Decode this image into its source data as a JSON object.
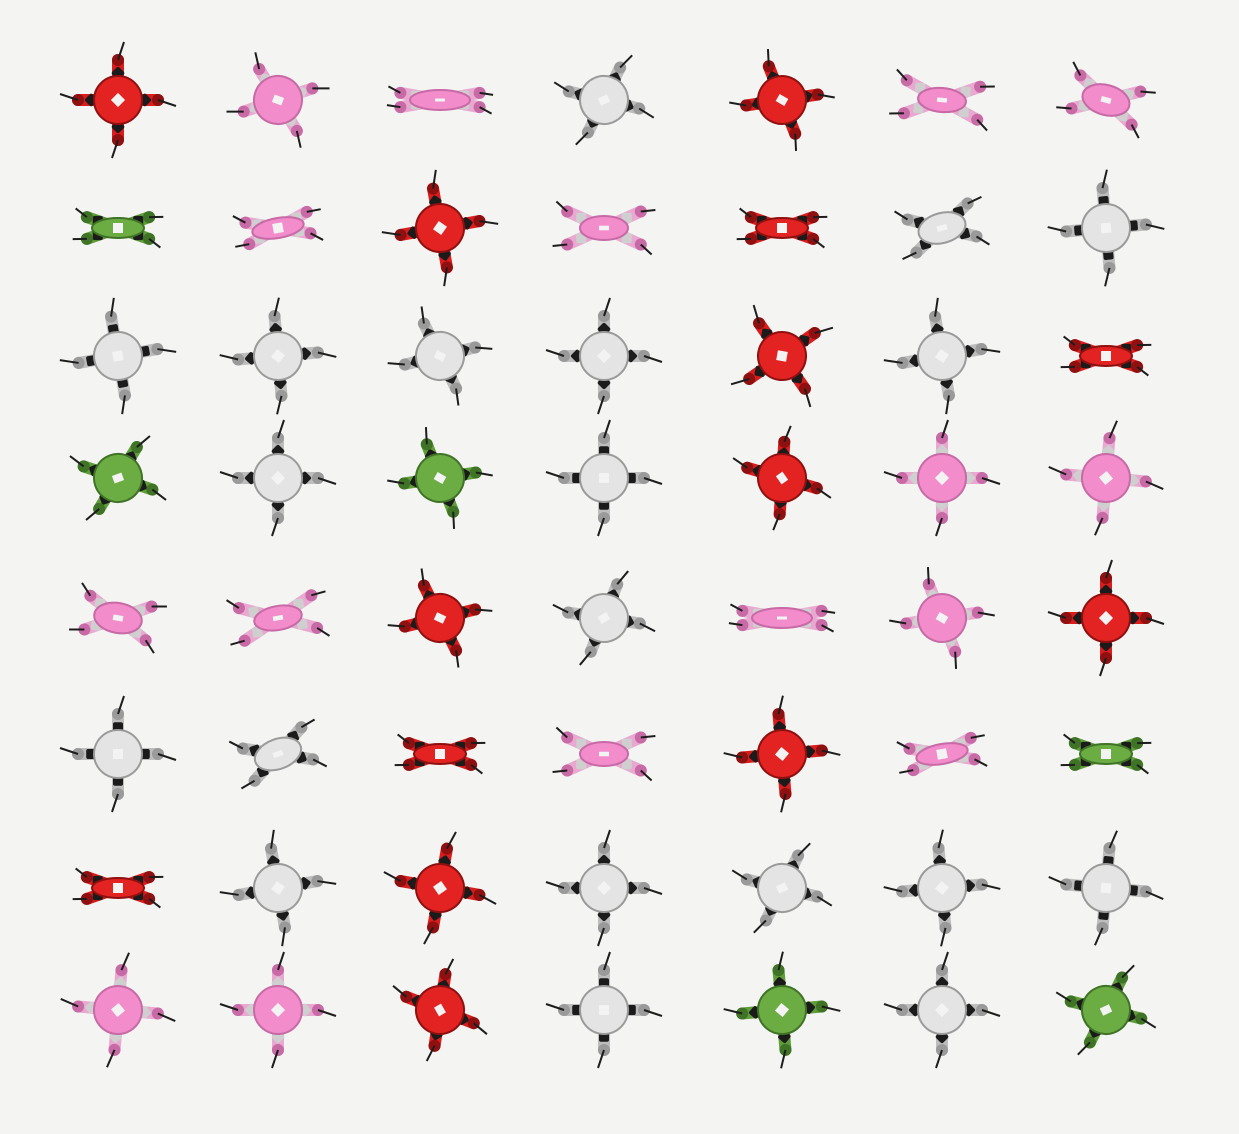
{
  "palette": {
    "background": "#f4f4f2",
    "gray": {
      "body": "#e4e4e4",
      "arm": "#bdbdbd",
      "joint": "#1b1b1b",
      "shade": "#9a9a9a"
    },
    "pink": {
      "body": "#f28ccb",
      "arm": "#e9a8d0",
      "joint": "#cfcfcf",
      "shade": "#c76aa6"
    },
    "red": {
      "body": "#e32222",
      "arm": "#d91c1c",
      "joint": "#1b1b1b",
      "shade": "#8f1010"
    },
    "green": {
      "body": "#6cad43",
      "arm": "#5e9d38",
      "joint": "#1b1b1b",
      "shade": "#3f7326"
    }
  },
  "robots": [
    [
      {
        "color": "red",
        "view": "x"
      },
      {
        "color": "pink",
        "view": "x-tilt"
      },
      {
        "color": "pink",
        "view": "side"
      },
      {
        "color": "gray",
        "view": "x-tilt"
      },
      {
        "color": "red",
        "view": "x-tilt"
      },
      {
        "color": "pink",
        "view": "flat"
      },
      {
        "color": "pink",
        "view": "tilt"
      }
    ],
    [
      {
        "color": "green",
        "view": "edge"
      },
      {
        "color": "pink",
        "view": "edge"
      },
      {
        "color": "red",
        "view": "x"
      },
      {
        "color": "pink",
        "view": "flat"
      },
      {
        "color": "red",
        "view": "edge"
      },
      {
        "color": "gray",
        "view": "tilt"
      },
      {
        "color": "gray",
        "view": "plus"
      }
    ],
    [
      {
        "color": "gray",
        "view": "plus"
      },
      {
        "color": "gray",
        "view": "x"
      },
      {
        "color": "gray",
        "view": "x-tilt"
      },
      {
        "color": "gray",
        "view": "x"
      },
      {
        "color": "red",
        "view": "x"
      },
      {
        "color": "gray",
        "view": "x"
      },
      {
        "color": "red",
        "view": "edge"
      }
    ],
    [
      {
        "color": "green",
        "view": "x-tilt"
      },
      {
        "color": "gray",
        "view": "x"
      },
      {
        "color": "green",
        "view": "x-tilt"
      },
      {
        "color": "gray",
        "view": "plus"
      },
      {
        "color": "red",
        "view": "x-tilt"
      },
      {
        "color": "pink",
        "view": "x"
      },
      {
        "color": "pink",
        "view": "x"
      }
    ],
    [
      {
        "color": "pink",
        "view": "tilt"
      },
      {
        "color": "pink",
        "view": "flat"
      },
      {
        "color": "red",
        "view": "x-tilt"
      },
      {
        "color": "gray",
        "view": "x-tilt"
      },
      {
        "color": "pink",
        "view": "side"
      },
      {
        "color": "pink",
        "view": "x-tilt"
      },
      {
        "color": "red",
        "view": "x"
      }
    ],
    [
      {
        "color": "gray",
        "view": "plus"
      },
      {
        "color": "gray",
        "view": "tilt"
      },
      {
        "color": "red",
        "view": "edge"
      },
      {
        "color": "pink",
        "view": "flat"
      },
      {
        "color": "red",
        "view": "x"
      },
      {
        "color": "pink",
        "view": "edge"
      },
      {
        "color": "green",
        "view": "edge"
      }
    ],
    [
      {
        "color": "red",
        "view": "edge"
      },
      {
        "color": "gray",
        "view": "x"
      },
      {
        "color": "red",
        "view": "x"
      },
      {
        "color": "gray",
        "view": "x"
      },
      {
        "color": "gray",
        "view": "x-tilt"
      },
      {
        "color": "gray",
        "view": "x"
      },
      {
        "color": "gray",
        "view": "plus"
      }
    ],
    [
      {
        "color": "pink",
        "view": "x"
      },
      {
        "color": "pink",
        "view": "x"
      },
      {
        "color": "red",
        "view": "x-tilt"
      },
      {
        "color": "gray",
        "view": "plus"
      },
      {
        "color": "green",
        "view": "x"
      },
      {
        "color": "gray",
        "view": "x"
      },
      {
        "color": "green",
        "view": "x-tilt"
      }
    ]
  ]
}
